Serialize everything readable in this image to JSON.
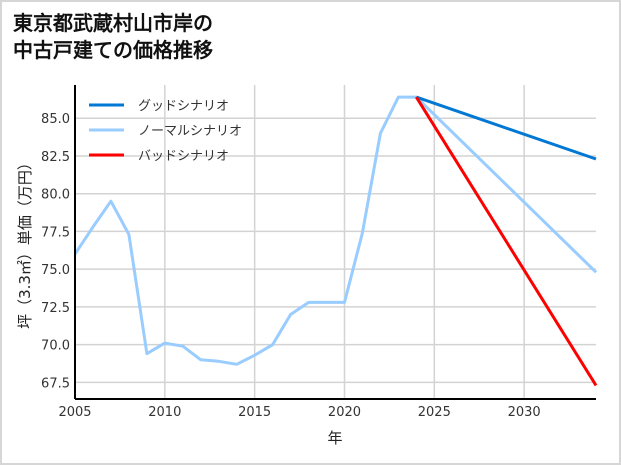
{
  "title": "東京都武蔵村山市岸の\n中古戸建ての価格推移",
  "colors": {
    "good": "#0078D4",
    "normal": "#99CCFF",
    "bad": "#FF0000",
    "grid": "#d3d3d3",
    "axis": "#000000"
  },
  "chart_data": {
    "type": "line",
    "title": "東京都武蔵村山市岸の中古戸建ての価格推移",
    "xlabel": "年",
    "ylabel": "坪（3.3㎡）単価（万円）",
    "xlim": [
      2005,
      2034
    ],
    "ylim": [
      66.4,
      87.2
    ],
    "xticks": [
      2005,
      2010,
      2015,
      2020,
      2025,
      2030
    ],
    "yticks": [
      67.5,
      70.0,
      72.5,
      75.0,
      77.5,
      80.0,
      82.5,
      85.0
    ],
    "ytick_labels": [
      "67.5",
      "70.0",
      "72.5",
      "75.0",
      "77.5",
      "80.0",
      "82.5",
      "85.0"
    ],
    "grid": true,
    "legend_position": "upper left",
    "series": [
      {
        "name": "ノーマルシナリオ",
        "key": "normal",
        "role": "history",
        "x": [
          2005,
          2006,
          2007,
          2008,
          2009,
          2010,
          2011,
          2012,
          2013,
          2014,
          2015,
          2016,
          2017,
          2018,
          2019,
          2020,
          2021,
          2022,
          2023,
          2024
        ],
        "values": [
          76.0,
          77.8,
          79.5,
          77.3,
          69.4,
          70.1,
          69.9,
          69.0,
          68.9,
          68.7,
          69.3,
          70.0,
          72.0,
          72.8,
          72.8,
          72.8,
          77.4,
          84.0,
          86.4,
          86.4
        ]
      },
      {
        "name": "グッドシナリオ",
        "key": "good",
        "x": [
          2024,
          2034
        ],
        "values": [
          86.4,
          82.3
        ]
      },
      {
        "name": "ノーマルシナリオ",
        "key": "normal",
        "x": [
          2024,
          2034
        ],
        "values": [
          86.4,
          74.8
        ]
      },
      {
        "name": "バッドシナリオ",
        "key": "bad",
        "x": [
          2024,
          2034
        ],
        "values": [
          86.4,
          67.3
        ]
      }
    ]
  },
  "legend": [
    {
      "label": "グッドシナリオ",
      "key": "good"
    },
    {
      "label": "ノーマルシナリオ",
      "key": "normal"
    },
    {
      "label": "バッドシナリオ",
      "key": "bad"
    }
  ]
}
